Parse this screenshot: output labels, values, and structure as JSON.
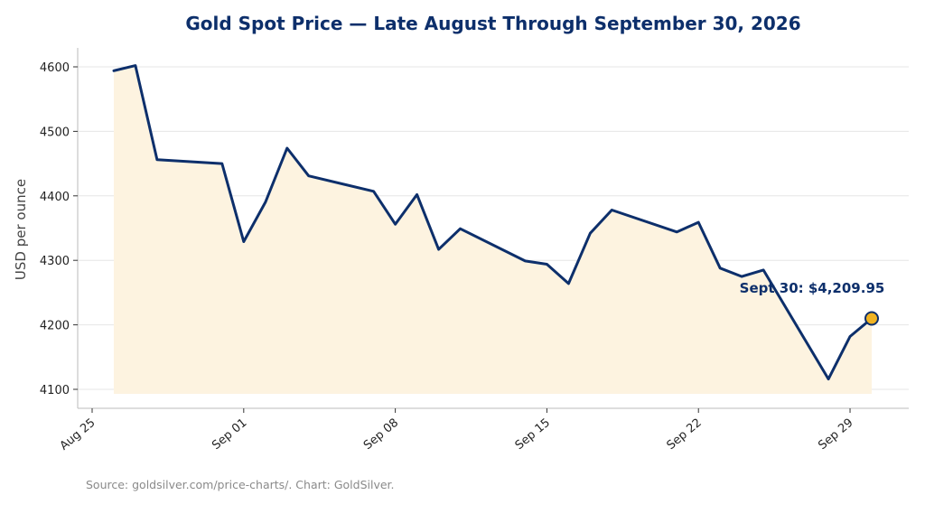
{
  "colors": {
    "line": "#0d2f6b",
    "fill": "#fdf3e0",
    "marker_fill": "#f0b323",
    "title": "#0d2f6b",
    "grid": "#e6e6e6",
    "axis": "#bbbbbb",
    "source_text": "#8a8a8a"
  },
  "chart_data": {
    "type": "area",
    "title": "Gold Spot Price — Late August Through September 30, 2026",
    "xlabel": "",
    "ylabel": "USD per ounce",
    "x_ticks": [
      "Aug 25",
      "Sep 01",
      "Sep 08",
      "Sep 15",
      "Sep 22",
      "Sep 29"
    ],
    "y_ticks": [
      4100,
      4200,
      4300,
      4400,
      4500,
      4600
    ],
    "ylim": [
      4070,
      4625
    ],
    "xlim": [
      "2026-08-25",
      "2026-09-30"
    ],
    "grid": "horizontal",
    "series": [
      {
        "x": [
          "2026-08-26",
          "2026-08-27",
          "2026-08-28",
          "2026-08-31",
          "2026-09-01",
          "2026-09-02",
          "2026-09-03",
          "2026-09-04",
          "2026-09-07",
          "2026-09-08",
          "2026-09-09",
          "2026-09-10",
          "2026-09-11",
          "2026-09-14",
          "2026-09-15",
          "2026-09-16",
          "2026-09-17",
          "2026-09-18",
          "2026-09-21",
          "2026-09-22",
          "2026-09-23",
          "2026-09-24",
          "2026-09-25",
          "2026-09-28",
          "2026-09-29",
          "2026-09-30"
        ],
        "values": [
          4594,
          4602,
          4456,
          4450,
          4329,
          4390,
          4474,
          4431,
          4407,
          4356,
          4402,
          4317,
          4349,
          4299,
          4294,
          4264,
          4342,
          4378,
          4344,
          4359,
          4288,
          4275,
          4285,
          4116,
          4182,
          4209.95
        ]
      }
    ],
    "annotation": {
      "text": "Sept 30: $4,209.95",
      "x": "2026-09-30",
      "y": 4209.95
    }
  },
  "source": "Source: goldsilver.com/price-charts/. Chart: GoldSilver."
}
